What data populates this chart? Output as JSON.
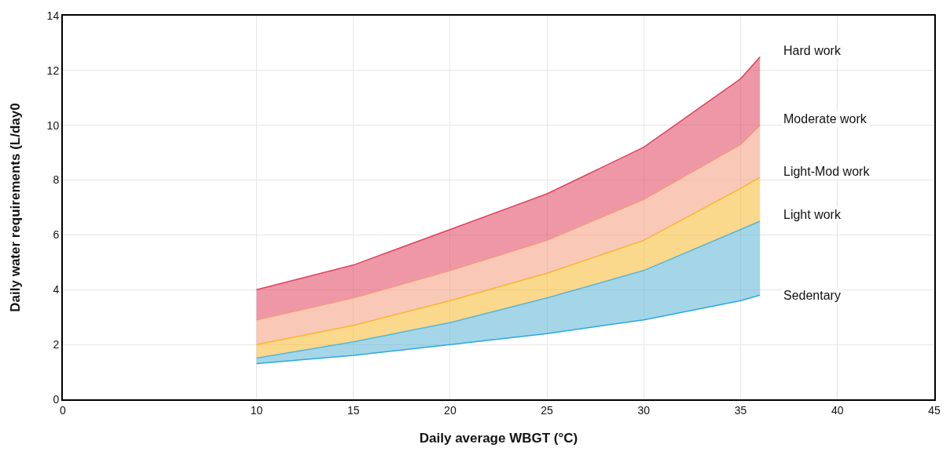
{
  "chart_data": {
    "type": "area",
    "xlabel": "Daily average WBGT (°C)",
    "ylabel": "Daily water requirements (L/day0",
    "x": [
      10,
      15,
      20,
      25,
      30,
      35,
      36
    ],
    "series": [
      {
        "name": "Sedentary",
        "type": "line",
        "color": "#29a8e0",
        "values": [
          1.3,
          1.6,
          2.0,
          2.4,
          2.9,
          3.6,
          3.8
        ]
      },
      {
        "name": "Light work",
        "color": "#5ab4d6",
        "values": [
          1.5,
          2.1,
          2.8,
          3.7,
          4.7,
          6.2,
          6.5
        ]
      },
      {
        "name": "Light-Mod work",
        "color": "#f5b82e",
        "values": [
          2.0,
          2.7,
          3.6,
          4.6,
          5.8,
          7.7,
          8.1
        ]
      },
      {
        "name": "Moderate work",
        "color": "#f49a7c",
        "values": [
          2.9,
          3.7,
          4.7,
          5.8,
          7.3,
          9.3,
          10.0
        ]
      },
      {
        "name": "Hard work",
        "color": "#e0435f",
        "values": [
          4.0,
          4.9,
          6.2,
          7.5,
          9.2,
          11.7,
          12.5
        ]
      }
    ],
    "xlim": [
      0,
      45
    ],
    "xticks": [
      0,
      10,
      15,
      20,
      25,
      30,
      35,
      40,
      45
    ],
    "ylim": [
      0,
      14
    ],
    "yticks": [
      0,
      2,
      4,
      6,
      8,
      10,
      12,
      14
    ],
    "grid": true,
    "legend": false
  }
}
